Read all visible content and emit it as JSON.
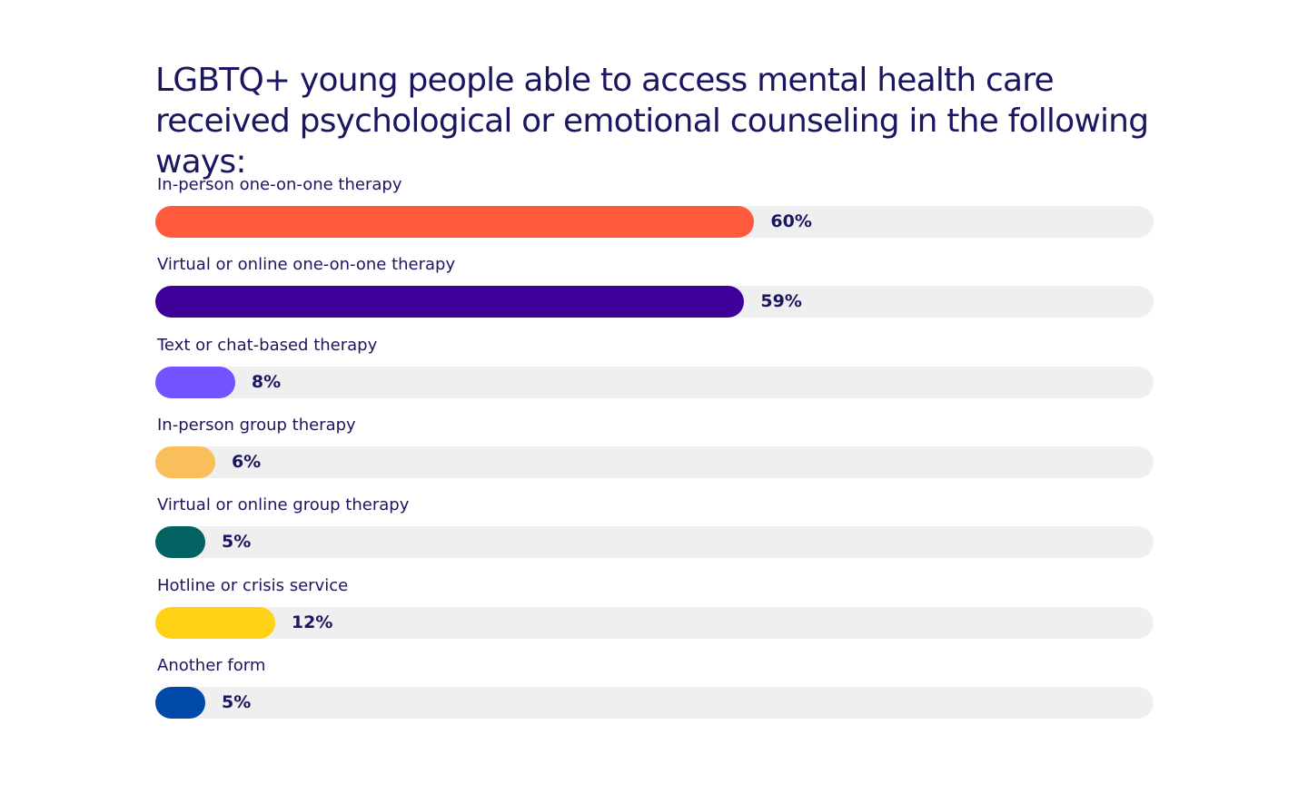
{
  "chart_data": {
    "type": "bar",
    "orientation": "horizontal",
    "title": "LGBTQ+ young people able to access mental health care received psychological or emotional counseling in the following ways:",
    "categories": [
      "In-person one-on-one therapy",
      "Virtual or online one-on-one therapy",
      "Text or chat-based therapy",
      "In-person group therapy",
      "Virtual or online group therapy",
      "Hotline or crisis service",
      "Another form"
    ],
    "values": [
      60,
      59,
      8,
      6,
      5,
      12,
      5
    ],
    "value_labels": [
      "60%",
      "59%",
      "8%",
      "6%",
      "5%",
      "12%",
      "5%"
    ],
    "colors": [
      "#ff5a3c",
      "#3d0099",
      "#7352ff",
      "#f9bf5a",
      "#036262",
      "#ffd215",
      "#0049a8"
    ],
    "track_color": "#efefef",
    "xlim": [
      0,
      100
    ],
    "unit": "%",
    "grid": false,
    "legend": "none"
  }
}
